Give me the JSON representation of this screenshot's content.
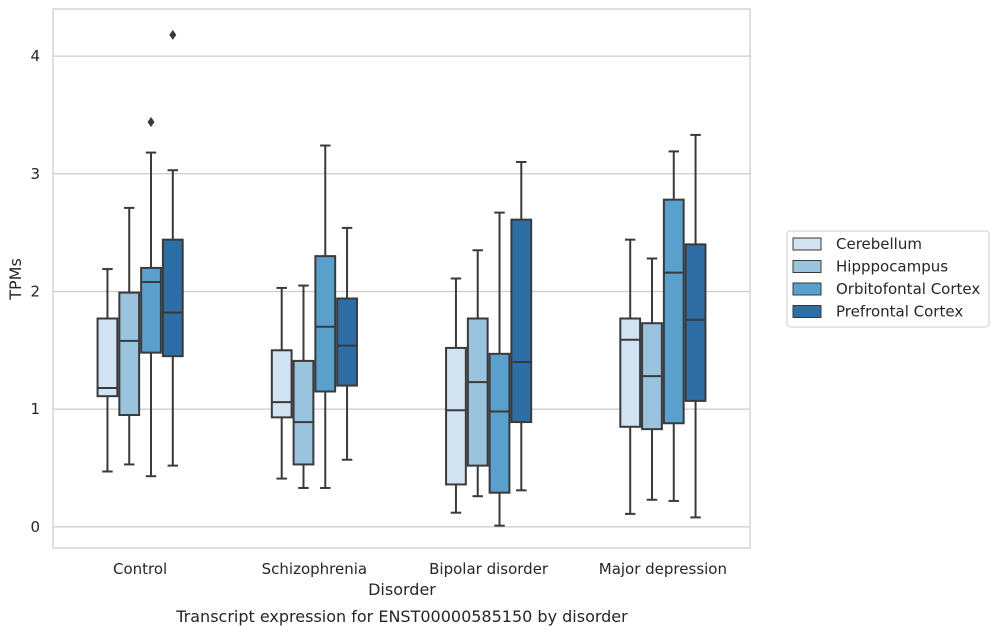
{
  "chart_data": {
    "type": "boxplot",
    "xlabel": "Disorder",
    "ylabel": "TPMs",
    "caption": "Transcript expression for ENST00000585150 by disorder",
    "categories": [
      "Control",
      "Schizophrenia",
      "Bipolar disorder",
      "Major depression"
    ],
    "ylim": [
      -0.18,
      4.4
    ],
    "yticks": [
      0,
      1,
      2,
      3,
      4
    ],
    "grid": "horizontal",
    "legend_position": "right",
    "series": [
      {
        "name": "Cerebellum",
        "color": "#d1e2f2",
        "boxes": [
          {
            "whislo": 0.47,
            "q1": 1.11,
            "med": 1.18,
            "q3": 1.77,
            "whishi": 2.19,
            "fliers": []
          },
          {
            "whislo": 0.41,
            "q1": 0.93,
            "med": 1.06,
            "q3": 1.5,
            "whishi": 2.03,
            "fliers": []
          },
          {
            "whislo": 0.12,
            "q1": 0.36,
            "med": 0.99,
            "q3": 1.52,
            "whishi": 2.11,
            "fliers": []
          },
          {
            "whislo": 0.11,
            "q1": 0.85,
            "med": 1.59,
            "q3": 1.77,
            "whishi": 2.44,
            "fliers": []
          }
        ]
      },
      {
        "name": "Hipppocampus",
        "color": "#9ac3de",
        "boxes": [
          {
            "whislo": 0.53,
            "q1": 0.95,
            "med": 1.58,
            "q3": 1.99,
            "whishi": 2.71,
            "fliers": []
          },
          {
            "whislo": 0.33,
            "q1": 0.53,
            "med": 0.89,
            "q3": 1.41,
            "whishi": 2.05,
            "fliers": []
          },
          {
            "whislo": 0.26,
            "q1": 0.52,
            "med": 1.23,
            "q3": 1.77,
            "whishi": 2.35,
            "fliers": []
          },
          {
            "whislo": 0.23,
            "q1": 0.83,
            "med": 1.28,
            "q3": 1.73,
            "whishi": 2.28,
            "fliers": []
          }
        ]
      },
      {
        "name": "Orbitofontal Cortex",
        "color": "#5aa0cd",
        "boxes": [
          {
            "whislo": 0.43,
            "q1": 1.48,
            "med": 2.08,
            "q3": 2.2,
            "whishi": 3.18,
            "fliers": [
              3.44
            ]
          },
          {
            "whislo": 0.33,
            "q1": 1.15,
            "med": 1.7,
            "q3": 2.3,
            "whishi": 3.24,
            "fliers": []
          },
          {
            "whislo": 0.01,
            "q1": 0.29,
            "med": 0.98,
            "q3": 1.47,
            "whishi": 2.67,
            "fliers": []
          },
          {
            "whislo": 0.22,
            "q1": 0.88,
            "med": 2.16,
            "q3": 2.78,
            "whishi": 3.19,
            "fliers": []
          }
        ]
      },
      {
        "name": "Prefrontal Cortex",
        "color": "#2d6ea6",
        "boxes": [
          {
            "whislo": 0.52,
            "q1": 1.45,
            "med": 1.82,
            "q3": 2.44,
            "whishi": 3.03,
            "fliers": [
              4.18
            ]
          },
          {
            "whislo": 0.57,
            "q1": 1.2,
            "med": 1.54,
            "q3": 1.94,
            "whishi": 2.54,
            "fliers": []
          },
          {
            "whislo": 0.31,
            "q1": 0.89,
            "med": 1.4,
            "q3": 2.61,
            "whishi": 3.1,
            "fliers": []
          },
          {
            "whislo": 0.08,
            "q1": 1.07,
            "med": 1.76,
            "q3": 2.4,
            "whishi": 3.33,
            "fliers": []
          }
        ]
      }
    ]
  }
}
